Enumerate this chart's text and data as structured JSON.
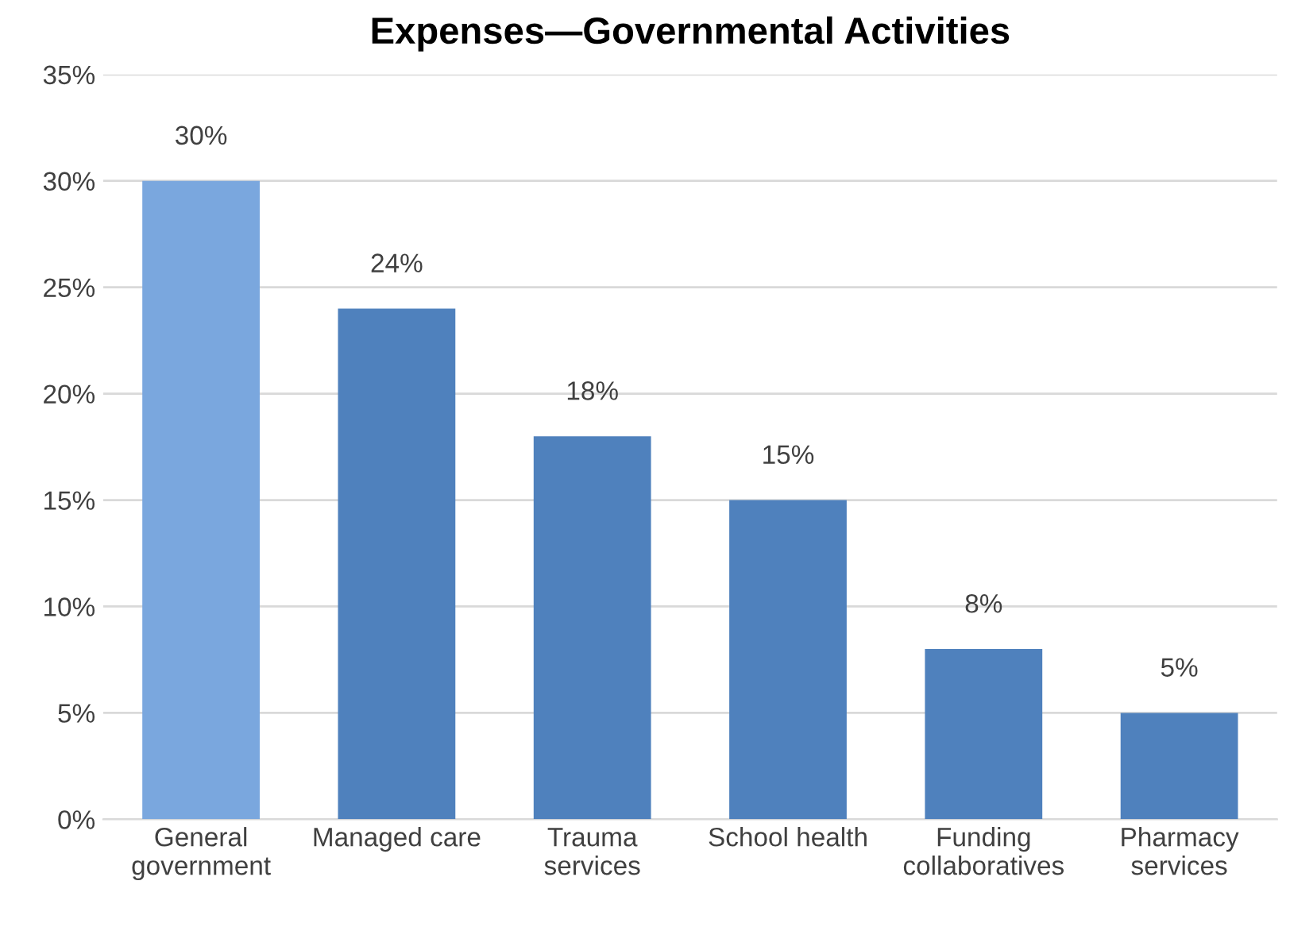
{
  "chart_data": {
    "type": "bar",
    "title": "Expenses—Governmental Activities",
    "categories": [
      "General\ngovernment",
      "Managed care",
      "Trauma\nservices",
      "School health",
      "Funding\ncollaboratives",
      "Pharmacy\nservices"
    ],
    "values": [
      30,
      24,
      18,
      15,
      8,
      5
    ],
    "colors": [
      "#7aa7de",
      "#4f81bd",
      "#4f81bd",
      "#4f81bd",
      "#4f81bd",
      "#4f81bd"
    ],
    "value_labels": [
      "30%",
      "24%",
      "18%",
      "15%",
      "8%",
      "5%"
    ],
    "ylim": [
      0,
      35
    ],
    "yticks": [
      {
        "value": 0,
        "label": "0%"
      },
      {
        "value": 5,
        "label": "5%"
      },
      {
        "value": 10,
        "label": "10%"
      },
      {
        "value": 15,
        "label": "15%"
      },
      {
        "value": 20,
        "label": "20%"
      },
      {
        "value": 25,
        "label": "25%"
      },
      {
        "value": 30,
        "label": "30%"
      },
      {
        "value": 35,
        "label": "35%"
      }
    ],
    "grid": "y",
    "legend": false
  }
}
